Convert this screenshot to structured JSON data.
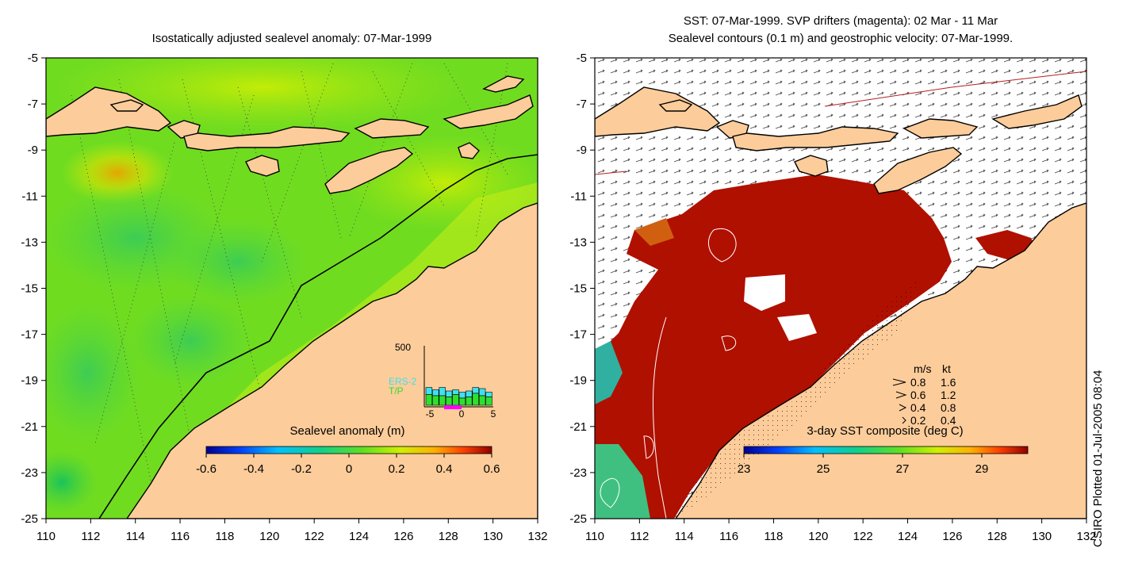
{
  "left_panel": {
    "title": "Isostatically adjusted sealevel anomaly: 07-Mar-1999",
    "colorbar": {
      "title": "Sealevel anomaly (m)",
      "ticks": [
        "-0.6",
        "-0.4",
        "-0.2",
        "0",
        "0.2",
        "0.4",
        "0.6"
      ]
    },
    "inset": {
      "ymax_label": "500",
      "legend": [
        "ERS-2",
        "T/P"
      ],
      "legend_colors": [
        "#40e0f0",
        "#2ee02e"
      ],
      "x_ticks": [
        "-5",
        "0",
        "5"
      ],
      "bars_total": [
        0.3,
        0.26,
        0.3,
        0.24,
        0.26,
        0.22,
        0.24,
        0.3,
        0.28,
        0.22
      ],
      "bars_tp": [
        0.18,
        0.16,
        0.16,
        0.14,
        0.18,
        0.12,
        0.14,
        0.2,
        0.16,
        0.14
      ]
    }
  },
  "right_panel": {
    "title_line1": "SST: 07-Mar-1999. SVP drifters (magenta): 02 Mar - 11 Mar",
    "title_line2": "Sealevel contours (0.1 m) and geostrophic velocity: 07-Mar-1999.",
    "colorbar": {
      "title": "3-day SST composite (deg C)",
      "ticks": [
        "23",
        "25",
        "27",
        "29"
      ]
    },
    "velocity_legend": {
      "header": [
        "m/s",
        "kt"
      ],
      "rows": [
        [
          "0.8",
          "1.6"
        ],
        [
          "0.6",
          "1.2"
        ],
        [
          "0.4",
          "0.8"
        ],
        [
          "0.2",
          "0.4"
        ]
      ]
    }
  },
  "axes": {
    "y_ticks": [
      "-5",
      "-7",
      "-9",
      "-11",
      "-13",
      "-15",
      "-17",
      "-19",
      "-21",
      "-23",
      "-25"
    ],
    "x_ticks": [
      "110",
      "112",
      "114",
      "116",
      "118",
      "120",
      "122",
      "124",
      "126",
      "128",
      "130",
      "132"
    ]
  },
  "credit": "CSIRO Plotted 01-Jul-2005 08:04",
  "colors": {
    "land": "#fccc9a",
    "sea_green": "#74e01c",
    "sst_red": "#b01000",
    "coast": "#000000"
  }
}
